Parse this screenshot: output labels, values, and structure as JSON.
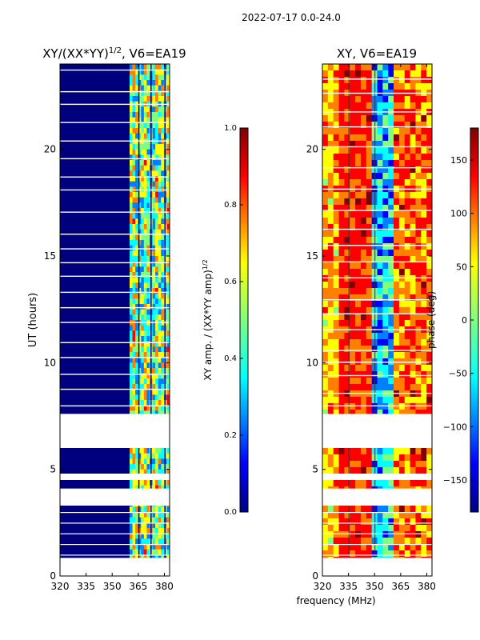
{
  "figure": {
    "suptitle": "2022-07-17 0.0-24.0",
    "shared_xlabel": "frequency (MHz)"
  },
  "colors": {
    "jet": [
      "#00007f",
      "#0000ff",
      "#007fff",
      "#00ffff",
      "#7fff7f",
      "#ffff00",
      "#ff7f00",
      "#ff0000",
      "#7f0000"
    ],
    "amp_background": "#00007f",
    "phase_background": "#ff7f00",
    "blank": "#ffffff"
  },
  "chart_data": [
    {
      "type": "heatmap",
      "title_main": "XY/(XX*YY)",
      "title_sup": "1/2",
      "title_tail": ", V6=EA19",
      "xlabel": "",
      "ylabel": "UT (hours)",
      "xlim": [
        320,
        383
      ],
      "ylim": [
        0,
        24
      ],
      "xticks": [
        320,
        335,
        350,
        365,
        380
      ],
      "yticks": [
        0,
        5,
        10,
        15,
        20
      ],
      "bright_band_mhz": [
        360,
        383
      ],
      "flagged_gaps_hours": [
        [
          0,
          0.85
        ],
        [
          3.3,
          4.1
        ],
        [
          4.5,
          4.8
        ],
        [
          6.0,
          7.6
        ]
      ],
      "colorbar": {
        "label_main": "XY amp. / (XX*YY amp)",
        "label_sup": "1/2",
        "range": [
          0.0,
          1.0
        ],
        "ticks": [
          "0.0",
          "0.2",
          "0.4",
          "0.6",
          "0.8",
          "1.0"
        ]
      }
    },
    {
      "type": "heatmap",
      "title_main": "XY, V6=EA19",
      "xlabel": "frequency (MHz)",
      "ylabel": "",
      "xlim": [
        320,
        383
      ],
      "ylim": [
        0,
        24
      ],
      "xticks": [
        320,
        335,
        350,
        365,
        380
      ],
      "yticks": [
        0,
        5,
        10,
        15,
        20
      ],
      "flagged_gaps_hours": [
        [
          0,
          0.85
        ],
        [
          3.3,
          4.1
        ],
        [
          4.5,
          4.8
        ],
        [
          6.0,
          7.6
        ]
      ],
      "colorbar": {
        "label": "phase (deg)",
        "range": [
          -180,
          180
        ],
        "ticks": [
          "−150",
          "−100",
          "−50",
          "0",
          "50",
          "100",
          "150"
        ]
      }
    }
  ]
}
